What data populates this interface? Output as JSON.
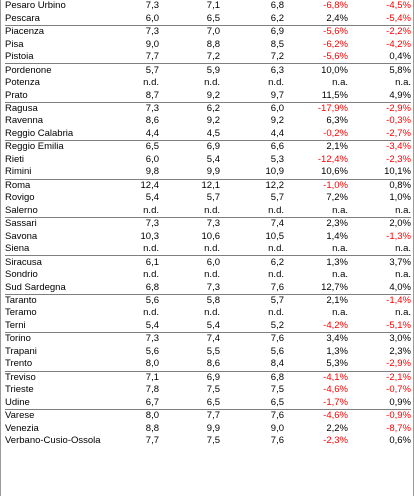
{
  "rows": [
    {
      "name": "Pesaro Urbino",
      "v1": "7,3",
      "v2": "7,1",
      "v3": "6,8",
      "p1": "-6,8%",
      "p2": "-4,5%",
      "n1": true,
      "n2": true,
      "g": false
    },
    {
      "name": "Pescara",
      "v1": "6,0",
      "v2": "6,5",
      "v3": "6,2",
      "p1": "2,4%",
      "p2": "-5,4%",
      "n1": false,
      "n2": true,
      "g": false
    },
    {
      "name": "Piacenza",
      "v1": "7,3",
      "v2": "7,0",
      "v3": "6,9",
      "p1": "-5,6%",
      "p2": "-2,2%",
      "n1": true,
      "n2": true,
      "g": true
    },
    {
      "name": "Pisa",
      "v1": "9,0",
      "v2": "8,8",
      "v3": "8,5",
      "p1": "-6,2%",
      "p2": "-4,2%",
      "n1": true,
      "n2": true,
      "g": false
    },
    {
      "name": "Pistoia",
      "v1": "7,7",
      "v2": "7,2",
      "v3": "7,2",
      "p1": "-5,6%",
      "p2": "0,4%",
      "n1": true,
      "n2": false,
      "g": false
    },
    {
      "name": "Pordenone",
      "v1": "5,7",
      "v2": "5,9",
      "v3": "6,3",
      "p1": "10,0%",
      "p2": "5,8%",
      "n1": false,
      "n2": false,
      "g": true
    },
    {
      "name": "Potenza",
      "v1": "n.d.",
      "v2": "n.d.",
      "v3": "n.d.",
      "p1": "n.a.",
      "p2": "n.a.",
      "n1": false,
      "n2": false,
      "g": false
    },
    {
      "name": "Prato",
      "v1": "8,7",
      "v2": "9,2",
      "v3": "9,7",
      "p1": "11,5%",
      "p2": "4,9%",
      "n1": false,
      "n2": false,
      "g": false
    },
    {
      "name": "Ragusa",
      "v1": "7,3",
      "v2": "6,2",
      "v3": "6,0",
      "p1": "-17,9%",
      "p2": "-2,9%",
      "n1": true,
      "n2": true,
      "g": true
    },
    {
      "name": "Ravenna",
      "v1": "8,6",
      "v2": "9,2",
      "v3": "9,2",
      "p1": "6,3%",
      "p2": "-0,3%",
      "n1": false,
      "n2": true,
      "g": false
    },
    {
      "name": "Reggio Calabria",
      "v1": "4,4",
      "v2": "4,5",
      "v3": "4,4",
      "p1": "-0,2%",
      "p2": "-2,7%",
      "n1": true,
      "n2": true,
      "g": false
    },
    {
      "name": "Reggio Emilia",
      "v1": "6,5",
      "v2": "6,9",
      "v3": "6,6",
      "p1": "2,1%",
      "p2": "-3,4%",
      "n1": false,
      "n2": true,
      "g": true
    },
    {
      "name": "Rieti",
      "v1": "6,0",
      "v2": "5,4",
      "v3": "5,3",
      "p1": "-12,4%",
      "p2": "-2,3%",
      "n1": true,
      "n2": true,
      "g": false
    },
    {
      "name": "Rimini",
      "v1": "9,8",
      "v2": "9,9",
      "v3": "10,9",
      "p1": "10,6%",
      "p2": "10,1%",
      "n1": false,
      "n2": false,
      "g": false
    },
    {
      "name": "Roma",
      "v1": "12,4",
      "v2": "12,1",
      "v3": "12,2",
      "p1": "-1,0%",
      "p2": "0,8%",
      "n1": true,
      "n2": false,
      "g": true
    },
    {
      "name": "Rovigo",
      "v1": "5,4",
      "v2": "5,7",
      "v3": "5,7",
      "p1": "7,2%",
      "p2": "1,0%",
      "n1": false,
      "n2": false,
      "g": false
    },
    {
      "name": "Salerno",
      "v1": "n.d.",
      "v2": "n.d.",
      "v3": "n.d.",
      "p1": "n.a.",
      "p2": "n.a.",
      "n1": false,
      "n2": false,
      "g": false
    },
    {
      "name": "Sassari",
      "v1": "7,3",
      "v2": "7,3",
      "v3": "7,4",
      "p1": "2,3%",
      "p2": "2,0%",
      "n1": false,
      "n2": false,
      "g": true
    },
    {
      "name": "Savona",
      "v1": "10,3",
      "v2": "10,6",
      "v3": "10,5",
      "p1": "1,4%",
      "p2": "-1,3%",
      "n1": false,
      "n2": true,
      "g": false
    },
    {
      "name": "Siena",
      "v1": "n.d.",
      "v2": "n.d.",
      "v3": "n.d.",
      "p1": "n.a.",
      "p2": "n.a.",
      "n1": false,
      "n2": false,
      "g": false
    },
    {
      "name": "Siracusa",
      "v1": "6,1",
      "v2": "6,0",
      "v3": "6,2",
      "p1": "1,3%",
      "p2": "3,7%",
      "n1": false,
      "n2": false,
      "g": true
    },
    {
      "name": "Sondrio",
      "v1": "n.d.",
      "v2": "n.d.",
      "v3": "n.d.",
      "p1": "n.a.",
      "p2": "n.a.",
      "n1": false,
      "n2": false,
      "g": false
    },
    {
      "name": "Sud Sardegna",
      "v1": "6,8",
      "v2": "7,3",
      "v3": "7,6",
      "p1": "12,7%",
      "p2": "4,0%",
      "n1": false,
      "n2": false,
      "g": false
    },
    {
      "name": "Taranto",
      "v1": "5,6",
      "v2": "5,8",
      "v3": "5,7",
      "p1": "2,1%",
      "p2": "-1,4%",
      "n1": false,
      "n2": true,
      "g": true
    },
    {
      "name": "Teramo",
      "v1": "n.d.",
      "v2": "n.d.",
      "v3": "n.d.",
      "p1": "n.a.",
      "p2": "n.a.",
      "n1": false,
      "n2": false,
      "g": false
    },
    {
      "name": "Terni",
      "v1": "5,4",
      "v2": "5,4",
      "v3": "5,2",
      "p1": "-4,2%",
      "p2": "-5,1%",
      "n1": true,
      "n2": true,
      "g": false
    },
    {
      "name": "Torino",
      "v1": "7,3",
      "v2": "7,4",
      "v3": "7,6",
      "p1": "3,4%",
      "p2": "3,0%",
      "n1": false,
      "n2": false,
      "g": true
    },
    {
      "name": "Trapani",
      "v1": "5,6",
      "v2": "5,5",
      "v3": "5,6",
      "p1": "1,3%",
      "p2": "2,3%",
      "n1": false,
      "n2": false,
      "g": false
    },
    {
      "name": "Trento",
      "v1": "8,0",
      "v2": "8,6",
      "v3": "8,4",
      "p1": "5,3%",
      "p2": "-2,9%",
      "n1": false,
      "n2": true,
      "g": false
    },
    {
      "name": "Treviso",
      "v1": "7,1",
      "v2": "6,9",
      "v3": "6,8",
      "p1": "-4,1%",
      "p2": "-2,1%",
      "n1": true,
      "n2": true,
      "g": true
    },
    {
      "name": "Trieste",
      "v1": "7,8",
      "v2": "7,5",
      "v3": "7,5",
      "p1": "-4,6%",
      "p2": "-0,7%",
      "n1": true,
      "n2": true,
      "g": false
    },
    {
      "name": "Udine",
      "v1": "6,7",
      "v2": "6,5",
      "v3": "6,5",
      "p1": "-1,7%",
      "p2": "0,9%",
      "n1": true,
      "n2": false,
      "g": false
    },
    {
      "name": "Varese",
      "v1": "8,0",
      "v2": "7,7",
      "v3": "7,6",
      "p1": "-4,6%",
      "p2": "-0,9%",
      "n1": true,
      "n2": true,
      "g": true
    },
    {
      "name": "Venezia",
      "v1": "8,8",
      "v2": "9,9",
      "v3": "9,0",
      "p1": "2,2%",
      "p2": "-8,7%",
      "n1": false,
      "n2": true,
      "g": false
    },
    {
      "name": "Verbano-Cusio-Ossola",
      "v1": "7,7",
      "v2": "7,5",
      "v3": "7,6",
      "p1": "-2,3%",
      "p2": "0,6%",
      "n1": true,
      "n2": false,
      "g": false
    }
  ],
  "colors": {
    "negative": "#ff0000",
    "text": "#000000",
    "rule": "#7f7f7f"
  }
}
